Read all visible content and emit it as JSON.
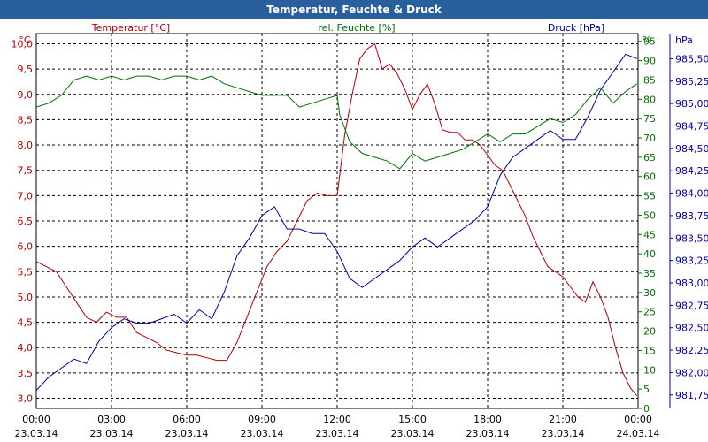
{
  "window": {
    "title": "Temperatur, Feuchte & Druck"
  },
  "colors": {
    "temp": "#b00000",
    "hum": "#007000",
    "press": "#0000a0",
    "grid": "#000000"
  },
  "chart_data": {
    "type": "line",
    "title": "Temperatur, Feuchte & Druck",
    "x_ticks": [
      {
        "time": "00:00",
        "date": "23.03.14"
      },
      {
        "time": "03:00",
        "date": "23.03.14"
      },
      {
        "time": "06:00",
        "date": "23.03.14"
      },
      {
        "time": "09:00",
        "date": "23.03.14"
      },
      {
        "time": "12:00",
        "date": "23.03.14"
      },
      {
        "time": "15:00",
        "date": "23.03.14"
      },
      {
        "time": "18:00",
        "date": "23.03.14"
      },
      {
        "time": "21:00",
        "date": "23.03.14"
      },
      {
        "time": "00:00",
        "date": "24.03.14"
      }
    ],
    "xlim": [
      0,
      24
    ],
    "axes": {
      "temp": {
        "label": "Temperatur [°C]",
        "unit": "°C",
        "ylim": [
          2.8,
          10.2
        ],
        "ticks": [
          "3,0",
          "3,5",
          "4,0",
          "4,5",
          "5,0",
          "5,5",
          "6,0",
          "6,5",
          "7,0",
          "7,5",
          "8,0",
          "8,5",
          "9,0",
          "9,5",
          "10,0"
        ]
      },
      "hum": {
        "label": "rel. Feuchte [%]",
        "unit": "%",
        "ylim": [
          0,
          97
        ],
        "ticks": [
          "0",
          "5",
          "10",
          "15",
          "20",
          "25",
          "30",
          "35",
          "40",
          "45",
          "50",
          "55",
          "60",
          "65",
          "70",
          "75",
          "80",
          "85",
          "90",
          "95"
        ]
      },
      "press": {
        "label": "Druck [hPa]",
        "unit": "hPa",
        "ylim": [
          981.6,
          985.78
        ],
        "ticks": [
          "981,75",
          "982,00",
          "982,25",
          "982,50",
          "982,75",
          "983,00",
          "983,25",
          "983,50",
          "983,75",
          "984,00",
          "984,25",
          "984,50",
          "984,75",
          "985,00",
          "985,25",
          "985,50"
        ]
      }
    },
    "series": [
      {
        "name": "Temperatur",
        "axis": "temp",
        "x": [
          0,
          0.4,
          0.8,
          1.2,
          1.6,
          2.0,
          2.4,
          2.8,
          3.2,
          3.6,
          4.0,
          4.4,
          4.8,
          5.2,
          5.6,
          6.0,
          6.4,
          6.8,
          7.2,
          7.6,
          8.0,
          8.4,
          8.8,
          9.2,
          9.6,
          10.0,
          10.4,
          10.8,
          11.2,
          11.6,
          12.0,
          12.3,
          12.6,
          12.9,
          13.2,
          13.5,
          13.8,
          14.1,
          14.4,
          14.7,
          15.0,
          15.3,
          15.6,
          15.9,
          16.2,
          16.5,
          16.8,
          17.1,
          17.4,
          17.7,
          18.0,
          18.3,
          18.6,
          18.9,
          19.2,
          19.5,
          19.8,
          20.1,
          20.4,
          20.7,
          21.0,
          21.3,
          21.6,
          21.9,
          22.2,
          22.5,
          22.8,
          23.1,
          23.4,
          23.7,
          23.95
        ],
        "values": [
          5.7,
          5.6,
          5.5,
          5.2,
          4.9,
          4.6,
          4.5,
          4.7,
          4.6,
          4.6,
          4.3,
          4.2,
          4.1,
          3.95,
          3.9,
          3.85,
          3.85,
          3.8,
          3.75,
          3.75,
          4.1,
          4.6,
          5.1,
          5.6,
          5.9,
          6.1,
          6.5,
          6.9,
          7.05,
          7.0,
          7.0,
          8.2,
          9.0,
          9.7,
          9.9,
          10.0,
          9.5,
          9.6,
          9.4,
          9.1,
          8.7,
          9.0,
          9.2,
          8.8,
          8.3,
          8.25,
          8.25,
          8.1,
          8.1,
          8.0,
          7.8,
          7.6,
          7.5,
          7.2,
          6.9,
          6.6,
          6.2,
          5.9,
          5.6,
          5.5,
          5.4,
          5.2,
          5.0,
          4.9,
          5.3,
          5.0,
          4.6,
          4.0,
          3.5,
          3.2,
          3.05
        ]
      },
      {
        "name": "rel. Feuchte",
        "axis": "hum",
        "x": [
          0,
          0.5,
          1.0,
          1.5,
          2.0,
          2.5,
          3.0,
          3.5,
          4.0,
          4.5,
          5.0,
          5.5,
          6.0,
          6.5,
          7.0,
          7.5,
          8.0,
          8.5,
          9.0,
          9.5,
          10.0,
          10.5,
          11.0,
          11.5,
          12.0,
          12.1,
          12.5,
          13.0,
          13.5,
          14.0,
          14.5,
          15.0,
          15.5,
          16.0,
          16.5,
          17.0,
          17.5,
          18.0,
          18.5,
          19.0,
          19.5,
          20.0,
          20.5,
          21.0,
          21.5,
          22.0,
          22.5,
          23.0,
          23.5,
          23.95
        ],
        "values": [
          78,
          79,
          81,
          85,
          86,
          85,
          86,
          85,
          86,
          86,
          85,
          86,
          86,
          85,
          86,
          84,
          83,
          82,
          81,
          81,
          81,
          78,
          79,
          80,
          81,
          76,
          69,
          66,
          65,
          64,
          62,
          66,
          64,
          65,
          66,
          67,
          69,
          71,
          69,
          71,
          71,
          73,
          75,
          74,
          76,
          80,
          83,
          79,
          82,
          84
        ]
      },
      {
        "name": "Druck",
        "axis": "press",
        "x": [
          0,
          0.5,
          1.0,
          1.5,
          2.0,
          2.5,
          3.0,
          3.5,
          4.0,
          4.5,
          5.0,
          5.5,
          6.0,
          6.5,
          7.0,
          7.5,
          8.0,
          8.5,
          9.0,
          9.5,
          10.0,
          10.5,
          11.0,
          11.5,
          12.0,
          12.5,
          13.0,
          13.5,
          14.0,
          14.5,
          15.0,
          15.5,
          16.0,
          16.5,
          17.0,
          17.5,
          18.0,
          18.5,
          19.0,
          19.5,
          20.0,
          20.5,
          21.0,
          21.5,
          22.0,
          22.5,
          23.0,
          23.5,
          23.95
        ],
        "values": [
          981.8,
          981.95,
          982.05,
          982.15,
          982.1,
          982.35,
          982.5,
          982.6,
          982.55,
          982.55,
          982.6,
          982.65,
          982.55,
          982.7,
          982.6,
          982.9,
          983.3,
          983.5,
          983.75,
          983.85,
          983.6,
          983.6,
          983.55,
          983.55,
          983.35,
          983.05,
          982.95,
          983.05,
          983.15,
          983.25,
          983.4,
          983.5,
          983.4,
          983.5,
          983.6,
          983.7,
          983.85,
          984.2,
          984.4,
          984.5,
          984.6,
          984.7,
          984.6,
          984.6,
          984.85,
          985.15,
          985.35,
          985.55,
          985.5
        ]
      }
    ]
  }
}
